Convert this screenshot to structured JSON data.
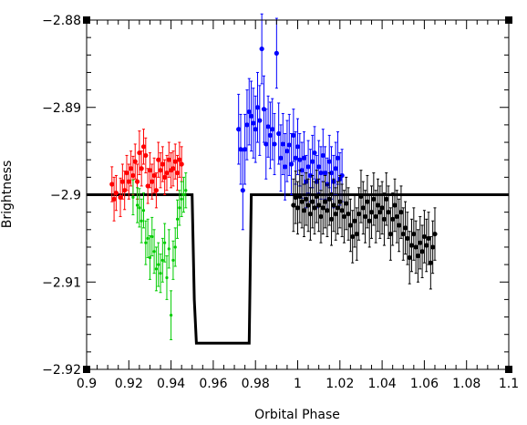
{
  "chart_data": {
    "type": "scatter",
    "xlabel": "Orbital Phase",
    "ylabel": "Brightness",
    "xlim": [
      0.9,
      1.1
    ],
    "ylim": [
      -2.92,
      -2.88
    ],
    "y_inverted": true,
    "xticks": [
      "0.9",
      "0.92",
      "0.94",
      "0.96",
      "0.98",
      "1",
      "1.02",
      "1.04",
      "1.06",
      "1.08",
      "1.1"
    ],
    "yticks": [
      "-2.88",
      "-2.89",
      "-2.9",
      "-2.91",
      "-2.92"
    ],
    "grid": false,
    "series": [
      {
        "color": "#ff0000",
        "points": [
          [
            0.912,
            -2.8988,
            0.002
          ],
          [
            0.913,
            -2.9005,
            0.0025
          ],
          [
            0.914,
            -2.8998,
            0.002
          ],
          [
            0.916,
            -2.9003,
            0.0022
          ],
          [
            0.917,
            -2.8985,
            0.002
          ],
          [
            0.918,
            -2.8995,
            0.0022
          ],
          [
            0.919,
            -2.8975,
            0.002
          ],
          [
            0.92,
            -2.8985,
            0.002
          ],
          [
            0.921,
            -2.897,
            0.002
          ],
          [
            0.922,
            -2.8978,
            0.0022
          ],
          [
            0.923,
            -2.8962,
            0.002
          ],
          [
            0.924,
            -2.8985,
            0.002
          ],
          [
            0.925,
            -2.8952,
            0.0025
          ],
          [
            0.926,
            -2.897,
            0.002
          ],
          [
            0.927,
            -2.8945,
            0.002
          ],
          [
            0.928,
            -2.8955,
            0.002
          ],
          [
            0.929,
            -2.899,
            0.002
          ],
          [
            0.93,
            -2.8972,
            0.002
          ],
          [
            0.931,
            -2.8985,
            0.002
          ],
          [
            0.932,
            -2.8978,
            0.002
          ],
          [
            0.933,
            -2.8995,
            0.002
          ],
          [
            0.934,
            -2.896,
            0.002
          ],
          [
            0.935,
            -2.8972,
            0.002
          ],
          [
            0.936,
            -2.8965,
            0.002
          ],
          [
            0.937,
            -2.898,
            0.002
          ],
          [
            0.938,
            -2.8975,
            0.002
          ],
          [
            0.939,
            -2.896,
            0.002
          ],
          [
            0.94,
            -2.8972,
            0.002
          ],
          [
            0.941,
            -2.897,
            0.002
          ],
          [
            0.942,
            -2.8962,
            0.002
          ],
          [
            0.943,
            -2.8975,
            0.002
          ],
          [
            0.944,
            -2.896,
            0.002
          ],
          [
            0.945,
            -2.8965,
            0.002
          ]
        ]
      },
      {
        "color": "#00cc00",
        "points": [
          [
            0.922,
            -2.9003,
            0.002
          ],
          [
            0.924,
            -2.9012,
            0.002
          ],
          [
            0.925,
            -2.9015,
            0.0022
          ],
          [
            0.926,
            -2.903,
            0.0025
          ],
          [
            0.927,
            -2.9018,
            0.002
          ],
          [
            0.928,
            -2.9055,
            0.0025
          ],
          [
            0.929,
            -2.905,
            0.0022
          ],
          [
            0.93,
            -2.9072,
            0.0025
          ],
          [
            0.931,
            -2.9048,
            0.0022
          ],
          [
            0.932,
            -2.9065,
            0.0025
          ],
          [
            0.933,
            -2.9085,
            0.0025
          ],
          [
            0.934,
            -2.908,
            0.0025
          ],
          [
            0.935,
            -2.909,
            0.0022
          ],
          [
            0.936,
            -2.9075,
            0.0025
          ],
          [
            0.937,
            -2.9055,
            0.0022
          ],
          [
            0.938,
            -2.9095,
            0.0025
          ],
          [
            0.939,
            -2.9062,
            0.0022
          ],
          [
            0.94,
            -2.9138,
            0.0028
          ],
          [
            0.941,
            -2.9075,
            0.0022
          ],
          [
            0.942,
            -2.906,
            0.0022
          ],
          [
            0.943,
            -2.9028,
            0.0022
          ],
          [
            0.944,
            -2.9015,
            0.002
          ],
          [
            0.945,
            -2.9005,
            0.002
          ],
          [
            0.946,
            -2.9,
            0.002
          ],
          [
            0.947,
            -2.8995,
            0.002
          ]
        ]
      },
      {
        "color": "#0000ff",
        "points": [
          [
            0.972,
            -2.8925,
            0.004
          ],
          [
            0.973,
            -2.8948,
            0.004
          ],
          [
            0.974,
            -2.8995,
            0.0045
          ],
          [
            0.975,
            -2.8948,
            0.004
          ],
          [
            0.976,
            -2.892,
            0.004
          ],
          [
            0.977,
            -2.8905,
            0.0038
          ],
          [
            0.978,
            -2.891,
            0.004
          ],
          [
            0.979,
            -2.8918,
            0.004
          ],
          [
            0.98,
            -2.8925,
            0.0038
          ],
          [
            0.981,
            -2.89,
            0.004
          ],
          [
            0.982,
            -2.8915,
            0.004
          ],
          [
            0.983,
            -2.8833,
            0.004
          ],
          [
            0.984,
            -2.8902,
            0.0038
          ],
          [
            0.985,
            -2.8942,
            0.004
          ],
          [
            0.986,
            -2.8922,
            0.0035
          ],
          [
            0.987,
            -2.8932,
            0.0038
          ],
          [
            0.988,
            -2.8925,
            0.0035
          ],
          [
            0.989,
            -2.8942,
            0.0035
          ],
          [
            0.99,
            -2.8838,
            0.004
          ],
          [
            0.991,
            -2.893,
            0.0035
          ],
          [
            0.992,
            -2.8958,
            0.0038
          ],
          [
            0.993,
            -2.8942,
            0.0035
          ],
          [
            0.994,
            -2.8968,
            0.0038
          ],
          [
            0.995,
            -2.895,
            0.0035
          ],
          [
            0.996,
            -2.8943,
            0.0035
          ],
          [
            0.997,
            -2.8965,
            0.0035
          ],
          [
            0.998,
            -2.8932,
            0.003
          ],
          [
            0.999,
            -2.8958,
            0.003
          ],
          [
            1.0,
            -2.8945,
            0.0032
          ],
          [
            1.001,
            -2.896,
            0.003
          ],
          [
            1.002,
            -2.8972,
            0.0032
          ],
          [
            1.003,
            -2.8958,
            0.003
          ],
          [
            1.004,
            -2.8985,
            0.003
          ],
          [
            1.005,
            -2.8968,
            0.003
          ],
          [
            1.006,
            -2.8978,
            0.003
          ],
          [
            1.007,
            -2.8962,
            0.003
          ],
          [
            1.008,
            -2.8952,
            0.003
          ],
          [
            1.009,
            -2.8985,
            0.003
          ],
          [
            1.01,
            -2.8968,
            0.003
          ],
          [
            1.011,
            -2.8975,
            0.003
          ],
          [
            1.012,
            -2.8955,
            0.003
          ],
          [
            1.013,
            -2.8975,
            0.003
          ],
          [
            1.014,
            -2.8988,
            0.003
          ],
          [
            1.015,
            -2.8962,
            0.003
          ],
          [
            1.016,
            -2.8975,
            0.003
          ],
          [
            1.017,
            -2.8985,
            0.003
          ],
          [
            1.018,
            -2.897,
            0.003
          ],
          [
            1.019,
            -2.8958,
            0.003
          ],
          [
            1.02,
            -2.8982,
            0.003
          ],
          [
            1.021,
            -2.8978,
            0.003
          ]
        ]
      },
      {
        "color": "#000000",
        "points": [
          [
            0.998,
            -2.9012,
            0.003
          ],
          [
            0.999,
            -2.9003,
            0.003
          ],
          [
            1.0,
            -2.9015,
            0.003
          ],
          [
            1.001,
            -2.9002,
            0.003
          ],
          [
            1.002,
            -2.9008,
            0.003
          ],
          [
            1.003,
            -2.9018,
            0.003
          ],
          [
            1.004,
            -2.9005,
            0.003
          ],
          [
            1.005,
            -2.9012,
            0.003
          ],
          [
            1.006,
            -2.9022,
            0.003
          ],
          [
            1.007,
            -2.9008,
            0.003
          ],
          [
            1.008,
            -2.9015,
            0.003
          ],
          [
            1.009,
            -2.9002,
            0.003
          ],
          [
            1.01,
            -2.9012,
            0.003
          ],
          [
            1.011,
            -2.9025,
            0.003
          ],
          [
            1.012,
            -2.9015,
            0.003
          ],
          [
            1.013,
            -2.9008,
            0.003
          ],
          [
            1.014,
            -2.9018,
            0.003
          ],
          [
            1.015,
            -2.9005,
            0.003
          ],
          [
            1.016,
            -2.9028,
            0.003
          ],
          [
            1.017,
            -2.9012,
            0.003
          ],
          [
            1.018,
            -2.9022,
            0.003
          ],
          [
            1.019,
            -2.9015,
            0.003
          ],
          [
            1.02,
            -2.9008,
            0.003
          ],
          [
            1.021,
            -2.9018,
            0.003
          ],
          [
            1.022,
            -2.9025,
            0.003
          ],
          [
            1.023,
            -2.901,
            0.003
          ],
          [
            1.024,
            -2.9022,
            0.003
          ],
          [
            1.025,
            -2.9035,
            0.003
          ],
          [
            1.026,
            -2.9048,
            0.003
          ],
          [
            1.027,
            -2.903,
            0.003
          ],
          [
            1.028,
            -2.9045,
            0.003
          ],
          [
            1.029,
            -2.9022,
            0.003
          ],
          [
            1.03,
            -2.9002,
            0.003
          ],
          [
            1.031,
            -2.9015,
            0.003
          ],
          [
            1.032,
            -2.9025,
            0.003
          ],
          [
            1.033,
            -2.9008,
            0.003
          ],
          [
            1.034,
            -2.903,
            0.003
          ],
          [
            1.035,
            -2.902,
            0.003
          ],
          [
            1.036,
            -2.9005,
            0.003
          ],
          [
            1.037,
            -2.9025,
            0.003
          ],
          [
            1.038,
            -2.9012,
            0.003
          ],
          [
            1.039,
            -2.902,
            0.003
          ],
          [
            1.04,
            -2.9015,
            0.003
          ],
          [
            1.041,
            -2.9028,
            0.003
          ],
          [
            1.042,
            -2.9005,
            0.003
          ],
          [
            1.043,
            -2.902,
            0.003
          ],
          [
            1.044,
            -2.9045,
            0.003
          ],
          [
            1.045,
            -2.9028,
            0.003
          ],
          [
            1.046,
            -2.9012,
            0.003
          ],
          [
            1.047,
            -2.9025,
            0.003
          ],
          [
            1.048,
            -2.9035,
            0.003
          ],
          [
            1.049,
            -2.902,
            0.003
          ],
          [
            1.05,
            -2.9045,
            0.003
          ],
          [
            1.051,
            -2.9038,
            0.003
          ],
          [
            1.052,
            -2.905,
            0.003
          ],
          [
            1.053,
            -2.9072,
            0.003
          ],
          [
            1.054,
            -2.9058,
            0.003
          ],
          [
            1.055,
            -2.9045,
            0.003
          ],
          [
            1.056,
            -2.906,
            0.003
          ],
          [
            1.057,
            -2.907,
            0.003
          ],
          [
            1.058,
            -2.9055,
            0.003
          ],
          [
            1.059,
            -2.9065,
            0.003
          ],
          [
            1.06,
            -2.9048,
            0.003
          ],
          [
            1.061,
            -2.9058,
            0.003
          ],
          [
            1.062,
            -2.905,
            0.003
          ],
          [
            1.063,
            -2.9078,
            0.003
          ],
          [
            1.064,
            -2.906,
            0.003
          ],
          [
            1.065,
            -2.9045,
            0.003
          ]
        ]
      }
    ],
    "model": {
      "color": "#000000",
      "points": [
        [
          0.9,
          -2.9
        ],
        [
          0.95,
          -2.9
        ],
        [
          0.951,
          -2.912
        ],
        [
          0.952,
          -2.917
        ],
        [
          0.977,
          -2.917
        ],
        [
          0.978,
          -2.9
        ],
        [
          1.1,
          -2.9
        ]
      ]
    }
  }
}
